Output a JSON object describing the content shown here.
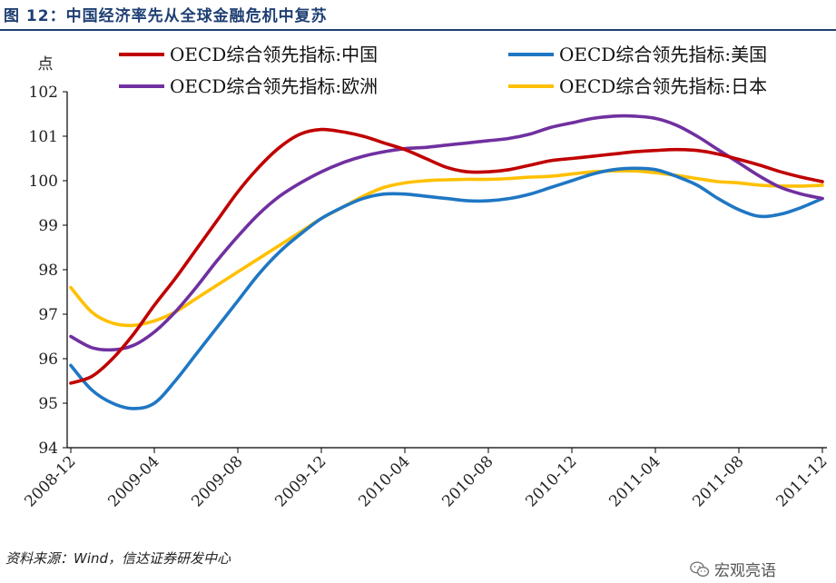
{
  "figure_title": "图 12：中国经济率先从全球金融危机中复苏",
  "source": "资料来源：Wind，信达证券研发中心",
  "watermark": {
    "text": "宏观亮语",
    "icon": "wechat-icon"
  },
  "chart_data": {
    "type": "line",
    "ylabel": "点",
    "ylim": [
      94,
      102
    ],
    "yticks": [
      "94",
      "95",
      "96",
      "97",
      "98",
      "99",
      "100",
      "101",
      "102"
    ],
    "xticks": [
      "2008-12",
      "2009-04",
      "2009-08",
      "2009-12",
      "2010-04",
      "2010-08",
      "2010-12",
      "2011-04",
      "2011-08",
      "2011-12"
    ],
    "x": [
      "2008-12",
      "2009-01",
      "2009-02",
      "2009-03",
      "2009-04",
      "2009-05",
      "2009-06",
      "2009-07",
      "2009-08",
      "2009-09",
      "2009-10",
      "2009-11",
      "2009-12",
      "2010-01",
      "2010-02",
      "2010-03",
      "2010-04",
      "2010-05",
      "2010-06",
      "2010-07",
      "2010-08",
      "2010-09",
      "2010-10",
      "2010-11",
      "2010-12",
      "2011-01",
      "2011-02",
      "2011-03",
      "2011-04",
      "2011-05",
      "2011-06",
      "2011-07",
      "2011-08",
      "2011-09",
      "2011-10",
      "2011-11",
      "2011-12"
    ],
    "legend_position": "top",
    "grid": false,
    "series": [
      {
        "name": "OECD综合领先指标:中国",
        "color": "#c00000",
        "values": [
          95.45,
          95.6,
          96.0,
          96.55,
          97.2,
          97.8,
          98.45,
          99.1,
          99.75,
          100.3,
          100.75,
          101.05,
          101.15,
          101.1,
          101.0,
          100.85,
          100.7,
          100.5,
          100.3,
          100.2,
          100.2,
          100.25,
          100.35,
          100.45,
          100.5,
          100.55,
          100.6,
          100.65,
          100.68,
          100.7,
          100.68,
          100.6,
          100.48,
          100.35,
          100.2,
          100.08,
          99.98
        ]
      },
      {
        "name": "OECD综合领先指标:美国",
        "color": "#1f77c4",
        "values": [
          95.85,
          95.3,
          95.0,
          94.88,
          95.0,
          95.5,
          96.1,
          96.7,
          97.3,
          97.9,
          98.4,
          98.8,
          99.15,
          99.4,
          99.6,
          99.7,
          99.7,
          99.65,
          99.6,
          99.55,
          99.55,
          99.6,
          99.7,
          99.85,
          100.0,
          100.15,
          100.25,
          100.28,
          100.25,
          100.1,
          99.9,
          99.6,
          99.35,
          99.2,
          99.25,
          99.4,
          99.6
        ]
      },
      {
        "name": "OECD综合领先指标:欧洲",
        "color": "#7030a0",
        "values": [
          96.5,
          96.25,
          96.2,
          96.3,
          96.6,
          97.05,
          97.6,
          98.2,
          98.75,
          99.25,
          99.65,
          99.95,
          100.2,
          100.4,
          100.55,
          100.65,
          100.72,
          100.75,
          100.8,
          100.85,
          100.9,
          100.95,
          101.05,
          101.2,
          101.3,
          101.4,
          101.45,
          101.45,
          101.4,
          101.25,
          101.0,
          100.7,
          100.4,
          100.1,
          99.85,
          99.7,
          99.6
        ]
      },
      {
        "name": "OECD综合领先指标:日本",
        "color": "#ffc000",
        "values": [
          97.6,
          97.05,
          96.8,
          96.75,
          96.85,
          97.05,
          97.35,
          97.65,
          97.95,
          98.25,
          98.55,
          98.85,
          99.15,
          99.4,
          99.65,
          99.85,
          99.95,
          100.0,
          100.02,
          100.03,
          100.03,
          100.05,
          100.08,
          100.1,
          100.15,
          100.2,
          100.22,
          100.22,
          100.18,
          100.12,
          100.05,
          99.98,
          99.95,
          99.9,
          99.88,
          99.88,
          99.9
        ]
      }
    ]
  }
}
